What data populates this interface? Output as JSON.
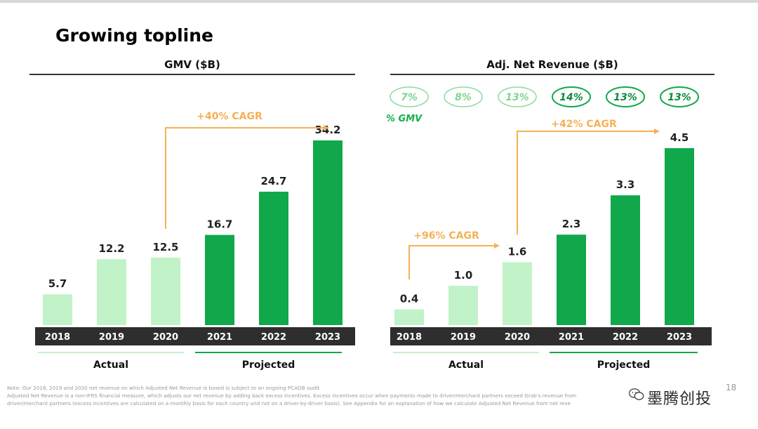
{
  "slide": {
    "title": "Growing topline",
    "page_number": "18",
    "note_line1": "Note: Our 2018, 2019 and 2020 net revenue on which Adjusted Net Revenue is based is subject to an ongoing PCAOB audit",
    "note_line2": "Adjusted Net Revenue is a non-IFRS financial measure, which adjusts our net revenue by adding back excess incentives. Excess incentives occur when payments made to driver/merchant partners exceed Grab's revenue from",
    "note_line3": "driver/merchant partners (excess incentives are calculated on a monthly basis for each country and not on a driver-by-driver basis). See Appendix for an explanation of how we calculate Adjusted Net Revenue from net reve",
    "watermark": "墨腾创投"
  },
  "colors": {
    "actual": "#c2f2c8",
    "projected": "#10a84a",
    "cagr": "#f6b055",
    "gmv_pct": "#13b04f",
    "axis_band": "#2e2e2e"
  },
  "chart_data": [
    {
      "type": "bar",
      "title": "GMV ($B)",
      "categories": [
        "2018",
        "2019",
        "2020",
        "2021",
        "2022",
        "2023"
      ],
      "values": [
        5.7,
        12.2,
        12.5,
        16.7,
        24.7,
        34.2
      ],
      "labels": [
        "5.7",
        "12.2",
        "12.5",
        "16.7",
        "24.7",
        "34.2"
      ],
      "status": [
        "actual",
        "actual",
        "actual",
        "projected",
        "projected",
        "projected"
      ],
      "group_labels": {
        "actual": "Actual",
        "projected": "Projected"
      },
      "annotations": [
        {
          "text": "+40% CAGR",
          "from": "2020",
          "to": "2023"
        }
      ],
      "ylim": [
        0,
        34.2
      ]
    },
    {
      "type": "bar",
      "title": "Adj. Net Revenue ($B)",
      "categories": [
        "2018",
        "2019",
        "2020",
        "2021",
        "2022",
        "2023"
      ],
      "values": [
        0.4,
        1.0,
        1.6,
        2.3,
        3.3,
        4.5
      ],
      "labels": [
        "0.4",
        "1.0",
        "1.6",
        "2.3",
        "3.3",
        "4.5"
      ],
      "status": [
        "actual",
        "actual",
        "actual",
        "projected",
        "projected",
        "projected"
      ],
      "group_labels": {
        "actual": "Actual",
        "projected": "Projected"
      },
      "pct_gmv": [
        "7%",
        "8%",
        "13%",
        "14%",
        "13%",
        "13%"
      ],
      "pct_gmv_label": "% GMV",
      "annotations": [
        {
          "text": "+96% CAGR",
          "from": "2018",
          "to": "2020"
        },
        {
          "text": "+42% CAGR",
          "from": "2020",
          "to": "2023"
        }
      ],
      "ylim": [
        0,
        4.5
      ]
    }
  ]
}
